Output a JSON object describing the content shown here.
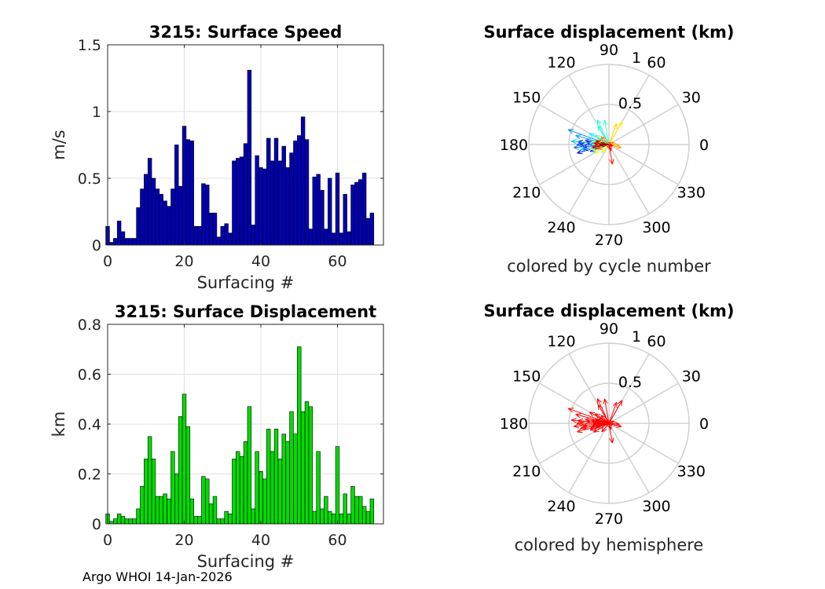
{
  "figure": {
    "footer": "Argo WHOI 14-Jan-2026"
  },
  "chart_data": [
    {
      "type": "bar",
      "id": "speed",
      "title": "3215: Surface Speed",
      "xlabel": "Surfacing #",
      "ylabel": "m/s",
      "xlim": [
        0,
        72
      ],
      "ylim": [
        0,
        1.5
      ],
      "xticks": [
        0,
        20,
        40,
        60
      ],
      "yticks": [
        0,
        0.5,
        1,
        1.5
      ],
      "ytick_labels": [
        "0",
        "0.5",
        "1",
        "1.5"
      ],
      "grid": true,
      "color": "#0000b4",
      "x": [
        0,
        1,
        2,
        3,
        4,
        5,
        6,
        7,
        8,
        9,
        10,
        11,
        12,
        13,
        14,
        15,
        16,
        17,
        18,
        19,
        20,
        21,
        22,
        23,
        24,
        25,
        26,
        27,
        28,
        29,
        30,
        31,
        32,
        33,
        34,
        35,
        36,
        37,
        38,
        39,
        40,
        41,
        42,
        43,
        44,
        45,
        46,
        47,
        48,
        49,
        50,
        51,
        52,
        53,
        54,
        55,
        56,
        57,
        58,
        59,
        60,
        61,
        62,
        63,
        64,
        65,
        66,
        67,
        68,
        69
      ],
      "values": [
        0.14,
        0.02,
        0.05,
        0.18,
        0.1,
        0.05,
        0.05,
        0.05,
        0.28,
        0.42,
        0.53,
        0.65,
        0.5,
        0.42,
        0.38,
        0.33,
        0.29,
        0.42,
        0.75,
        0.44,
        0.89,
        0.79,
        0.78,
        0.14,
        0.14,
        0.46,
        0.45,
        0.24,
        0.24,
        0.06,
        0.14,
        0.16,
        0.09,
        0.63,
        0.65,
        0.66,
        0.76,
        1.31,
        0.15,
        0.67,
        0.58,
        0.57,
        0.8,
        0.63,
        0.8,
        0.63,
        0.74,
        0.58,
        0.69,
        0.78,
        0.82,
        0.96,
        0.79,
        0.12,
        0.51,
        0.53,
        0.41,
        0.12,
        0.5,
        0.09,
        0.54,
        0.09,
        0.38,
        0.1,
        0.45,
        0.47,
        0.49,
        0.54,
        0.2,
        0.24
      ]
    },
    {
      "type": "bar",
      "id": "displacement",
      "title": "3215: Surface Displacement",
      "xlabel": "Surfacing #",
      "ylabel": "km",
      "xlim": [
        0,
        72
      ],
      "ylim": [
        0,
        0.8
      ],
      "xticks": [
        0,
        20,
        40,
        60
      ],
      "yticks": [
        0,
        0.2,
        0.4,
        0.6,
        0.8
      ],
      "ytick_labels": [
        "0",
        "0.2",
        "0.4",
        "0.6",
        "0.8"
      ],
      "grid": true,
      "color": "#00dc00",
      "x": [
        0,
        1,
        2,
        3,
        4,
        5,
        6,
        7,
        8,
        9,
        10,
        11,
        12,
        13,
        14,
        15,
        16,
        17,
        18,
        19,
        20,
        21,
        22,
        23,
        24,
        25,
        26,
        27,
        28,
        29,
        30,
        31,
        32,
        33,
        34,
        35,
        36,
        37,
        38,
        39,
        40,
        41,
        42,
        43,
        44,
        45,
        46,
        47,
        48,
        49,
        50,
        51,
        52,
        53,
        54,
        55,
        56,
        57,
        58,
        59,
        60,
        61,
        62,
        63,
        64,
        65,
        66,
        67,
        68,
        69
      ],
      "values": [
        0.04,
        0.01,
        0.02,
        0.04,
        0.03,
        0.02,
        0.02,
        0.02,
        0.06,
        0.15,
        0.26,
        0.35,
        0.26,
        0.11,
        0.11,
        0.12,
        0.1,
        0.29,
        0.2,
        0.43,
        0.52,
        0.39,
        0.1,
        0.03,
        0.03,
        0.19,
        0.18,
        0.08,
        0.11,
        0.02,
        0.02,
        0.05,
        0.04,
        0.26,
        0.29,
        0.27,
        0.33,
        0.47,
        0.06,
        0.29,
        0.21,
        0.18,
        0.38,
        0.29,
        0.38,
        0.26,
        0.36,
        0.33,
        0.45,
        0.36,
        0.71,
        0.45,
        0.49,
        0.47,
        0.05,
        0.29,
        0.06,
        0.11,
        0.05,
        0.04,
        0.31,
        0.04,
        0.12,
        0.04,
        0.15,
        0.11,
        0.11,
        0.07,
        0.05,
        0.1
      ]
    },
    {
      "type": "polar-quiver",
      "id": "compass-cycle",
      "title": "Surface displacement (km)",
      "caption": "colored by cycle number",
      "rlim": [
        0,
        1
      ],
      "radial_labels": [
        "0.5",
        "1"
      ],
      "angle_labels": [
        "0",
        "30",
        "60",
        "90",
        "120",
        "150",
        "180",
        "210",
        "240",
        "270",
        "300",
        "330"
      ],
      "color_mode": "cycle",
      "colormap": [
        "#00008f",
        "#0000ff",
        "#0080ff",
        "#00ffff",
        "#80ff80",
        "#ffff00",
        "#ff8000",
        "#ff0000",
        "#800000"
      ],
      "vectors": [
        {
          "angle": 175,
          "r": 0.39
        },
        {
          "angle": 180,
          "r": 0.36
        },
        {
          "angle": 175,
          "r": 0.28
        },
        {
          "angle": 195,
          "r": 0.41
        },
        {
          "angle": 185,
          "r": 0.32
        },
        {
          "angle": 190,
          "r": 0.33
        },
        {
          "angle": 170,
          "r": 0.3
        },
        {
          "angle": 200,
          "r": 0.25
        },
        {
          "angle": 180,
          "r": 0.4
        },
        {
          "angle": 185,
          "r": 0.44
        },
        {
          "angle": 160,
          "r": 0.54
        },
        {
          "angle": 165,
          "r": 0.43
        },
        {
          "angle": 175,
          "r": 0.47
        },
        {
          "angle": 190,
          "r": 0.36
        },
        {
          "angle": 150,
          "r": 0.28
        },
        {
          "angle": 120,
          "r": 0.27
        },
        {
          "angle": 115,
          "r": 0.34
        },
        {
          "angle": 100,
          "r": 0.31
        },
        {
          "angle": 145,
          "r": 0.21
        },
        {
          "angle": 170,
          "r": 0.22
        },
        {
          "angle": 180,
          "r": 0.2
        },
        {
          "angle": 195,
          "r": 0.24
        },
        {
          "angle": 210,
          "r": 0.22
        },
        {
          "angle": 230,
          "r": 0.14
        },
        {
          "angle": 160,
          "r": 0.15
        },
        {
          "angle": 60,
          "r": 0.33
        },
        {
          "angle": 70,
          "r": 0.28
        },
        {
          "angle": 355,
          "r": 0.13
        },
        {
          "angle": 345,
          "r": 0.16
        },
        {
          "angle": 20,
          "r": 0.07
        },
        {
          "angle": 135,
          "r": 0.14
        },
        {
          "angle": 200,
          "r": 0.16
        },
        {
          "angle": 185,
          "r": 0.18
        },
        {
          "angle": 280,
          "r": 0.25
        },
        {
          "angle": 290,
          "r": 0.08
        },
        {
          "angle": 340,
          "r": 0.05
        },
        {
          "angle": 175,
          "r": 0.19
        },
        {
          "angle": 165,
          "r": 0.17
        },
        {
          "angle": 190,
          "r": 0.21
        },
        {
          "angle": 180,
          "r": 0.12
        }
      ]
    },
    {
      "type": "polar-quiver",
      "id": "compass-hemisphere",
      "title": "Surface displacement (km)",
      "caption": "colored by hemisphere",
      "rlim": [
        0,
        1
      ],
      "radial_labels": [
        "0.5",
        "1"
      ],
      "angle_labels": [
        "0",
        "30",
        "60",
        "90",
        "120",
        "150",
        "180",
        "210",
        "240",
        "270",
        "300",
        "330"
      ],
      "color_mode": "single",
      "color": "#ff0000"
    }
  ]
}
